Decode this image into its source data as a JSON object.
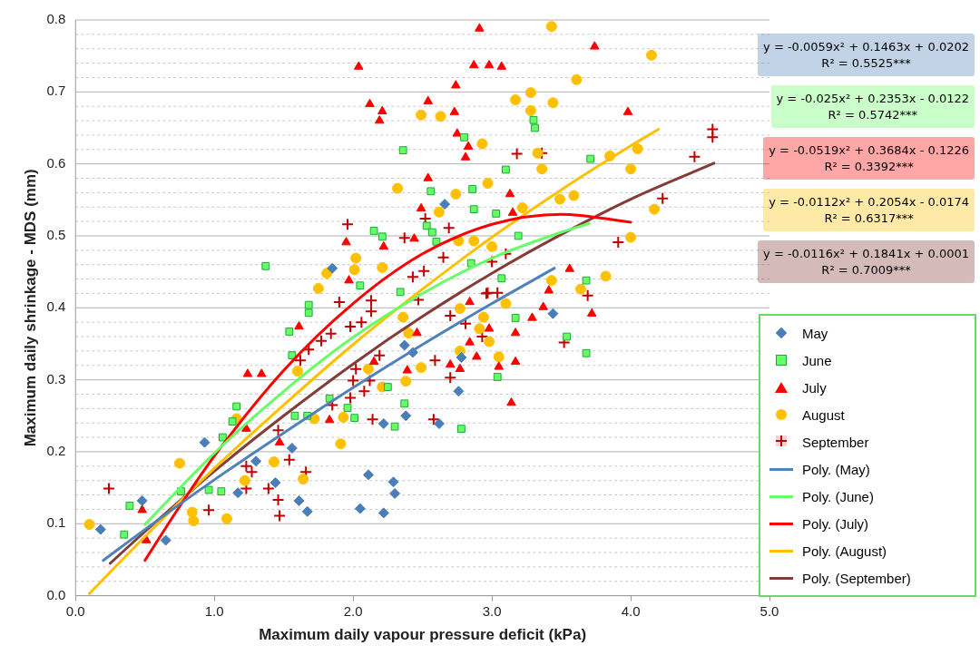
{
  "chart_data": {
    "type": "scatter",
    "xlabel": "Maximum daily vapour pressure deficit (kPa)",
    "ylabel": "Maximum daily shrinkage - MDS (mm)",
    "xlim": [
      0,
      5
    ],
    "ylim": [
      0,
      0.8
    ],
    "xticks": [
      {
        "value": 0,
        "label": "0.0"
      },
      {
        "value": 1,
        "label": "1.0"
      },
      {
        "value": 2,
        "label": "2.0"
      },
      {
        "value": 3,
        "label": "3.0"
      },
      {
        "value": 4,
        "label": "4.0"
      },
      {
        "value": 5,
        "label": "5.0"
      }
    ],
    "yticks": [
      {
        "value": 0,
        "label": "0.0"
      },
      {
        "value": 0.02,
        "label": null
      },
      {
        "value": 0.04,
        "label": null
      },
      {
        "value": 0.06,
        "label": null
      },
      {
        "value": 0.08,
        "label": null
      },
      {
        "value": 0.1,
        "label": "0.1"
      },
      {
        "value": 0.12,
        "label": null
      },
      {
        "value": 0.14,
        "label": null
      },
      {
        "value": 0.16,
        "label": null
      },
      {
        "value": 0.18,
        "label": null
      },
      {
        "value": 0.2,
        "label": "0.2"
      },
      {
        "value": 0.22,
        "label": null
      },
      {
        "value": 0.24,
        "label": null
      },
      {
        "value": 0.26,
        "label": null
      },
      {
        "value": 0.28,
        "label": null
      },
      {
        "value": 0.3,
        "label": "0.3"
      },
      {
        "value": 0.32,
        "label": null
      },
      {
        "value": 0.34,
        "label": null
      },
      {
        "value": 0.36,
        "label": null
      },
      {
        "value": 0.38,
        "label": null
      },
      {
        "value": 0.4,
        "label": "0.4"
      },
      {
        "value": 0.42,
        "label": null
      },
      {
        "value": 0.44,
        "label": null
      },
      {
        "value": 0.46,
        "label": null
      },
      {
        "value": 0.48,
        "label": null
      },
      {
        "value": 0.5,
        "label": "0.5"
      },
      {
        "value": 0.52,
        "label": null
      },
      {
        "value": 0.54,
        "label": null
      },
      {
        "value": 0.56,
        "label": null
      },
      {
        "value": 0.58,
        "label": null
      },
      {
        "value": 0.6,
        "label": "0.6"
      },
      {
        "value": 0.62,
        "label": null
      },
      {
        "value": 0.64,
        "label": null
      },
      {
        "value": 0.66,
        "label": null
      },
      {
        "value": 0.68,
        "label": null
      },
      {
        "value": 0.7,
        "label": "0.7"
      },
      {
        "value": 0.72,
        "label": null
      },
      {
        "value": 0.74,
        "label": null
      },
      {
        "value": 0.76,
        "label": null
      },
      {
        "value": 0.78,
        "label": null
      },
      {
        "value": 0.8,
        "label": "0.8"
      }
    ],
    "grid": "y",
    "legend": "right",
    "annotations": [
      "y = -0.0059x² + 0.1463x + 0.0202\nR² = 0.5525***",
      "y = -0.025x² + 0.2353x - 0.0122\nR² = 0.5742***",
      "y = -0.0519x² + 0.3684x - 0.1226\nR² = 0.3392***",
      "y = -0.0112x² + 0.2054x - 0.0174\nR² = 0.6317***",
      "y = -0.0116x² + 0.1841x + 0.0001\nR² = 0.7009***"
    ],
    "series": [
      {
        "name": "May",
        "type": "scatter",
        "marker": "diamond",
        "color": "#4a7ebb",
        "x": [
          0.18,
          0.48,
          0.65,
          0.93,
          1.17,
          1.3,
          1.44,
          1.56,
          1.61,
          1.67,
          2.11,
          2.29,
          2.3,
          2.05,
          2.22,
          2.22,
          2.38,
          2.43,
          2.37,
          1.85,
          2.66,
          2.76,
          2.78,
          2.62,
          3.44
        ],
        "values": [
          0.092,
          0.132,
          0.077,
          0.213,
          0.143,
          0.187,
          0.157,
          0.205,
          0.132,
          0.117,
          0.168,
          0.158,
          0.142,
          0.121,
          0.115,
          0.239,
          0.25,
          0.338,
          0.348,
          0.455,
          0.544,
          0.284,
          0.331,
          0.239,
          0.392
        ]
      },
      {
        "name": "June",
        "type": "scatter",
        "marker": "square",
        "color": "#66ff66",
        "x": [
          0.39,
          0.35,
          0.76,
          0.96,
          1.05,
          1.16,
          1.13,
          1.06,
          1.58,
          1.67,
          2.01,
          2.3,
          2.37,
          1.96,
          1.83,
          1.54,
          1.68,
          1.68,
          1.56,
          2.25,
          1.37,
          2.36,
          2.8,
          2.56,
          2.86,
          2.87,
          3.03,
          3.1,
          2.15,
          2.21,
          2.05,
          2.34,
          2.53,
          2.57,
          2.6,
          3.07,
          3.3,
          3.31,
          3.71,
          3.19,
          2.85,
          3.68,
          3.17,
          3.54,
          3.68,
          3.04,
          2.78
        ],
        "values": [
          0.125,
          0.085,
          0.145,
          0.147,
          0.145,
          0.263,
          0.242,
          0.22,
          0.25,
          0.25,
          0.247,
          0.235,
          0.267,
          0.261,
          0.274,
          0.367,
          0.404,
          0.393,
          0.334,
          0.29,
          0.458,
          0.619,
          0.637,
          0.562,
          0.565,
          0.537,
          0.531,
          0.592,
          0.507,
          0.499,
          0.431,
          0.422,
          0.514,
          0.505,
          0.492,
          0.441,
          0.661,
          0.65,
          0.607,
          0.5,
          0.462,
          0.438,
          0.386,
          0.36,
          0.337,
          0.304,
          0.232
        ]
      },
      {
        "name": "July",
        "type": "scatter",
        "marker": "triangle",
        "color": "#ff0000",
        "x": [
          0.48,
          0.51,
          1.24,
          1.34,
          1.61,
          1.23,
          1.47,
          1.83,
          2.15,
          2.39,
          2.46,
          2.91,
          2.04,
          2.87,
          2.98,
          3.07,
          2.74,
          2.12,
          2.21,
          2.19,
          2.54,
          2.73,
          2.75,
          2.83,
          2.81,
          2.54,
          2.49,
          1.95,
          2.22,
          1.97,
          2.44,
          3.74,
          3.98,
          3.13,
          3.15,
          3.56,
          3.41,
          2.84,
          3.37,
          3.14,
          3.72,
          3.29,
          3.17,
          3.17,
          3.05,
          2.89,
          2.84,
          2.98,
          2.7,
          2.77
        ],
        "values": [
          0.119,
          0.077,
          0.308,
          0.308,
          0.374,
          0.232,
          0.213,
          0.244,
          0.325,
          0.313,
          0.365,
          0.788,
          0.735,
          0.737,
          0.737,
          0.735,
          0.709,
          0.683,
          0.673,
          0.66,
          0.687,
          0.672,
          0.642,
          0.624,
          0.609,
          0.58,
          0.538,
          0.491,
          0.485,
          0.438,
          0.496,
          0.763,
          0.672,
          0.558,
          0.532,
          0.454,
          0.424,
          0.408,
          0.401,
          0.268,
          0.392,
          0.386,
          0.365,
          0.325,
          0.318,
          0.332,
          0.352,
          0.371,
          0.321,
          0.315
        ]
      },
      {
        "name": "August",
        "type": "scatter",
        "marker": "circle",
        "color": "#ffc000",
        "x": [
          0.1,
          0.75,
          0.84,
          0.85,
          1.09,
          1.16,
          1.22,
          1.43,
          1.64,
          1.72,
          1.91,
          1.93,
          2.21,
          2.38,
          1.6,
          2.49,
          2.63,
          2.93,
          2.32,
          2.74,
          2.97,
          2.62,
          2.02,
          2.01,
          1.81,
          1.75,
          2.21,
          2.87,
          3.0,
          2.76,
          3.43,
          4.15,
          3.61,
          3.17,
          3.28,
          3.28,
          3.44,
          3.33,
          3.36,
          3.85,
          4.05,
          4.0,
          3.49,
          3.59,
          4.17,
          3.22,
          4.0,
          3.82,
          3.43,
          3.64,
          3.1,
          2.94,
          2.91,
          2.98,
          3.05,
          2.77,
          2.77,
          2.49,
          2.11,
          2.4,
          2.36
        ],
        "values": [
          0.099,
          0.184,
          0.116,
          0.104,
          0.107,
          0.246,
          0.16,
          0.186,
          0.162,
          0.246,
          0.211,
          0.248,
          0.29,
          0.298,
          0.312,
          0.668,
          0.666,
          0.628,
          0.566,
          0.558,
          0.573,
          0.533,
          0.469,
          0.453,
          0.448,
          0.427,
          0.456,
          0.493,
          0.485,
          0.493,
          0.791,
          0.751,
          0.717,
          0.689,
          0.699,
          0.674,
          0.685,
          0.615,
          0.593,
          0.611,
          0.621,
          0.593,
          0.551,
          0.556,
          0.537,
          0.539,
          0.498,
          0.444,
          0.438,
          0.426,
          0.406,
          0.387,
          0.371,
          0.353,
          0.332,
          0.34,
          0.399,
          0.317,
          0.315,
          0.365,
          0.387
        ]
      },
      {
        "name": "September",
        "type": "scatter",
        "marker": "cross",
        "color": "#c00000",
        "x": [
          0.24,
          0.96,
          1.23,
          1.39,
          1.46,
          1.47,
          1.27,
          1.23,
          1.54,
          1.66,
          1.46,
          1.85,
          1.98,
          2.14,
          2.08,
          2.0,
          2.12,
          2.19,
          2.02,
          1.62,
          1.68,
          1.77,
          1.84,
          1.98,
          2.06,
          2.13,
          2.13,
          1.96,
          1.9,
          2.37,
          2.52,
          2.69,
          2.43,
          2.51,
          2.65,
          3.0,
          2.96,
          3.04,
          2.47,
          3.18,
          3.36,
          4.59,
          4.59,
          4.46,
          4.23,
          3.91,
          3.69,
          3.1,
          3.52,
          2.93,
          2.81,
          2.7,
          2.97,
          2.59,
          2.7,
          2.58
        ],
        "values": [
          0.149,
          0.119,
          0.149,
          0.149,
          0.133,
          0.111,
          0.172,
          0.18,
          0.189,
          0.172,
          0.23,
          0.265,
          0.275,
          0.245,
          0.284,
          0.299,
          0.299,
          0.334,
          0.315,
          0.327,
          0.342,
          0.354,
          0.364,
          0.374,
          0.38,
          0.395,
          0.41,
          0.516,
          0.408,
          0.497,
          0.524,
          0.511,
          0.443,
          0.451,
          0.47,
          0.464,
          0.42,
          0.421,
          0.411,
          0.614,
          0.615,
          0.648,
          0.637,
          0.61,
          0.552,
          0.491,
          0.417,
          0.475,
          0.352,
          0.36,
          0.378,
          0.389,
          0.421,
          0.327,
          0.303,
          0.245
        ]
      },
      {
        "name": "Poly. (May)",
        "type": "line",
        "marker": "none",
        "color": "#4f81bd",
        "x": [
          0.2,
          0.5,
          1,
          1.5,
          2,
          2.5,
          3,
          3.45
        ],
        "values": [
          0.049,
          0.092,
          0.161,
          0.226,
          0.289,
          0.349,
          0.406,
          0.455
        ]
      },
      {
        "name": "Poly. (June)",
        "type": "line",
        "marker": "none",
        "color": "#66ff66",
        "x": [
          0.5,
          1,
          1.5,
          2,
          2.5,
          3,
          3.5,
          3.7
        ],
        "values": [
          0.099,
          0.198,
          0.284,
          0.359,
          0.42,
          0.469,
          0.505,
          0.517
        ]
      },
      {
        "name": "Poly. (July)",
        "type": "line",
        "marker": "none",
        "color": "#ff0000",
        "x": [
          0.5,
          0.75,
          1,
          1.5,
          2,
          2.5,
          3,
          3.5,
          4
        ],
        "values": [
          0.049,
          0.124,
          0.194,
          0.313,
          0.406,
          0.475,
          0.516,
          0.53,
          0.519
        ]
      },
      {
        "name": "Poly. (August)",
        "type": "line",
        "marker": "none",
        "color": "#ffc000",
        "x": [
          0.1,
          0.5,
          1,
          1.5,
          2,
          2.5,
          3,
          3.5,
          4,
          4.2
        ],
        "values": [
          0.003,
          0.082,
          0.177,
          0.265,
          0.349,
          0.426,
          0.498,
          0.564,
          0.625,
          0.648
        ]
      },
      {
        "name": "Poly. (September)",
        "type": "line",
        "marker": "none",
        "color": "#843c39",
        "x": [
          0.25,
          0.5,
          1,
          1.5,
          2,
          2.5,
          3,
          3.5,
          4,
          4.6
        ],
        "values": [
          0.045,
          0.089,
          0.173,
          0.25,
          0.322,
          0.388,
          0.448,
          0.502,
          0.551,
          0.601
        ]
      }
    ]
  }
}
